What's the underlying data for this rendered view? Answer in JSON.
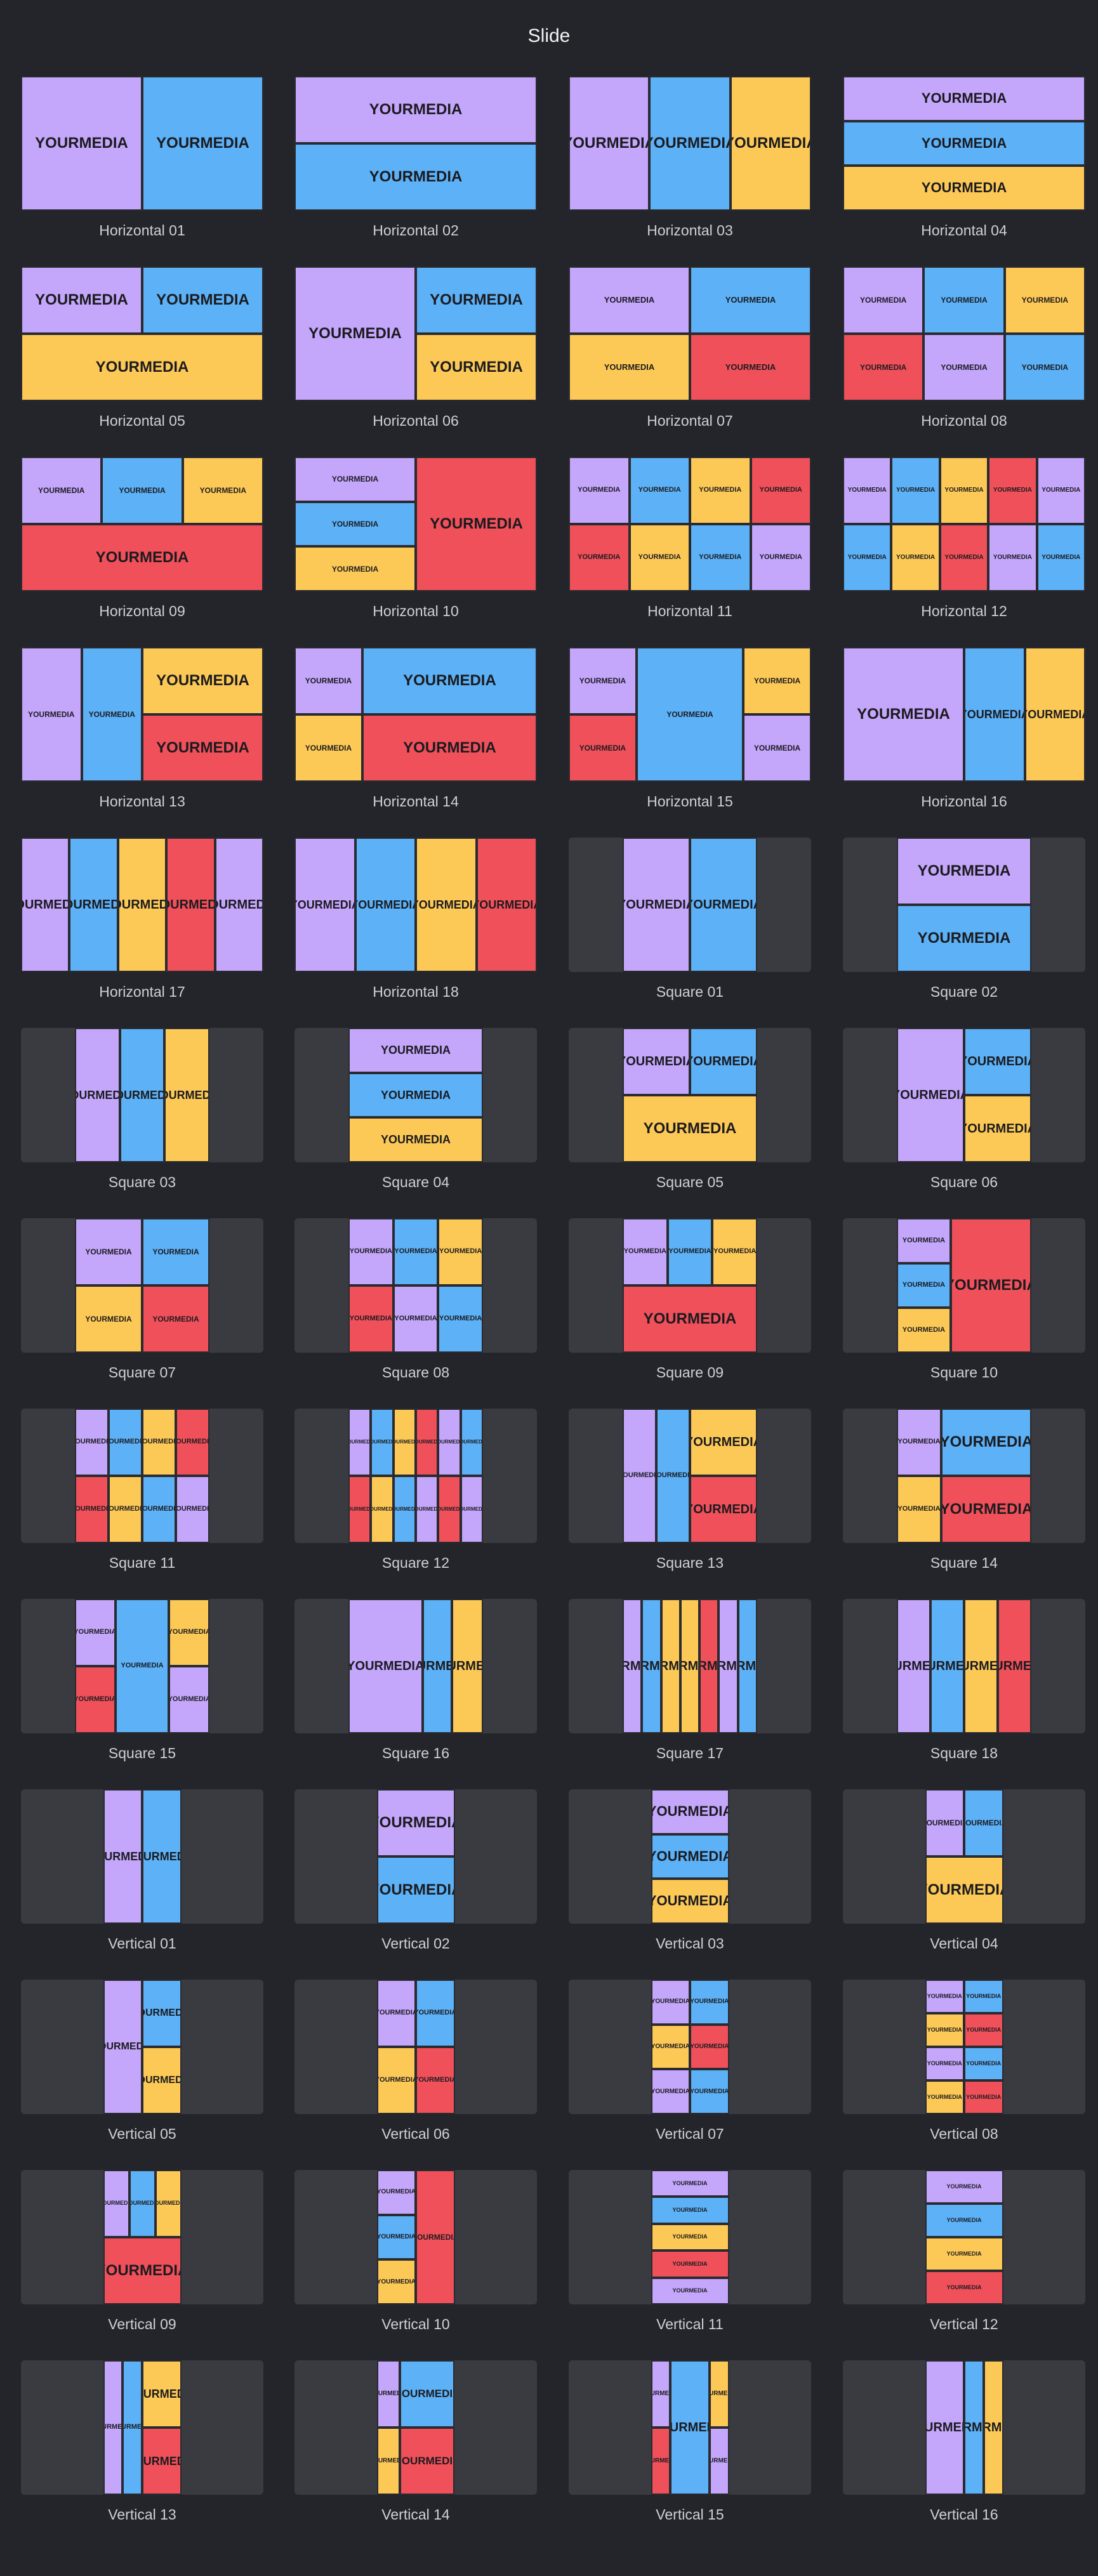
{
  "page_title": "Slide",
  "cell_text": "YOUR\nMEDIA",
  "colors": {
    "purple": "#c4a6fb",
    "blue": "#5cb1f7",
    "yellow": "#fdc956",
    "red": "#f0505a",
    "frame_bg": "#3a3b40",
    "page_bg": "#23252b"
  },
  "layouts": [
    {
      "label": "Horizontal 01"
    },
    {
      "label": "Horizontal 02"
    },
    {
      "label": "Horizontal 03"
    },
    {
      "label": "Horizontal 04"
    },
    {
      "label": "Horizontal 05"
    },
    {
      "label": "Horizontal 06"
    },
    {
      "label": "Horizontal 07"
    },
    {
      "label": "Horizontal 08"
    },
    {
      "label": "Horizontal 09"
    },
    {
      "label": "Horizontal 10"
    },
    {
      "label": "Horizontal 11"
    },
    {
      "label": "Horizontal 12"
    },
    {
      "label": "Horizontal 13"
    },
    {
      "label": "Horizontal 14"
    },
    {
      "label": "Horizontal 15"
    },
    {
      "label": "Horizontal 16"
    },
    {
      "label": "Horizontal 17"
    },
    {
      "label": "Horizontal 18"
    },
    {
      "label": "Square 01"
    },
    {
      "label": "Square 02"
    },
    {
      "label": "Square 03"
    },
    {
      "label": "Square 04"
    },
    {
      "label": "Square 05"
    },
    {
      "label": "Square 06"
    },
    {
      "label": "Square 07"
    },
    {
      "label": "Square 08"
    },
    {
      "label": "Square 09"
    },
    {
      "label": "Square 10"
    },
    {
      "label": "Square 11"
    },
    {
      "label": "Square 12"
    },
    {
      "label": "Square 13"
    },
    {
      "label": "Square 14"
    },
    {
      "label": "Square 15"
    },
    {
      "label": "Square 16"
    },
    {
      "label": "Square 17"
    },
    {
      "label": "Square 18"
    },
    {
      "label": "Vertical 01"
    },
    {
      "label": "Vertical 02"
    },
    {
      "label": "Vertical 03"
    },
    {
      "label": "Vertical 04"
    },
    {
      "label": "Vertical 05"
    },
    {
      "label": "Vertical 06"
    },
    {
      "label": "Vertical 07"
    },
    {
      "label": "Vertical 08"
    },
    {
      "label": "Vertical 09"
    },
    {
      "label": "Vertical 10"
    },
    {
      "label": "Vertical 11"
    },
    {
      "label": "Vertical 12"
    },
    {
      "label": "Vertical 13"
    },
    {
      "label": "Vertical 14"
    },
    {
      "label": "Vertical 15"
    },
    {
      "label": "Vertical 16"
    }
  ]
}
